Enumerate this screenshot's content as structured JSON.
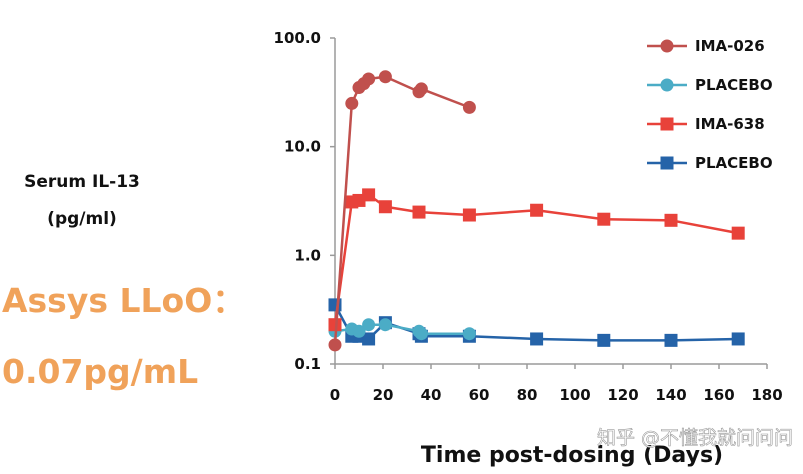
{
  "chart_data": {
    "type": "line",
    "ylabel_lines": [
      "Serum IL-13",
      "(pg/ml)"
    ],
    "xlabel": "Time post-dosing (Days)",
    "yscale": "log",
    "ylim": [
      0.1,
      100
    ],
    "xlim": [
      0,
      180
    ],
    "yticks": [
      0.1,
      1,
      10,
      100
    ],
    "ytick_labels": [
      "0.1",
      "1.0",
      "10.0",
      "100.0"
    ],
    "xticks": [
      0,
      20,
      40,
      60,
      80,
      100,
      120,
      140,
      160,
      180
    ],
    "xtick_labels": [
      "0",
      "20",
      "40",
      "60",
      "80",
      "100",
      "120",
      "140",
      "160",
      "180"
    ],
    "series": [
      {
        "name": "IMA-026",
        "color": "#C0504D",
        "marker": "circle",
        "x": [
          0,
          7,
          10,
          12,
          14,
          21,
          35,
          36,
          56
        ],
        "y": [
          0.15,
          25,
          35,
          38,
          42,
          44,
          32,
          34,
          23
        ]
      },
      {
        "name": "PLACEBO",
        "color": "#4BACC6",
        "marker": "circle",
        "x": [
          0,
          7,
          10,
          14,
          21,
          35,
          36,
          56
        ],
        "y": [
          0.2,
          0.21,
          0.2,
          0.23,
          0.23,
          0.2,
          0.19,
          0.19
        ]
      },
      {
        "name": "IMA-638",
        "color": "#E8423A",
        "marker": "square",
        "x": [
          0,
          7,
          10,
          14,
          21,
          35,
          56,
          84,
          112,
          140,
          168
        ],
        "y": [
          0.23,
          3.1,
          3.2,
          3.6,
          2.8,
          2.5,
          2.35,
          2.6,
          2.15,
          2.1,
          1.6
        ]
      },
      {
        "name": "PLACEBO",
        "color": "#2563A8",
        "marker": "square",
        "x": [
          0,
          7,
          10,
          14,
          21,
          35,
          36,
          56,
          84,
          112,
          140,
          168
        ],
        "y": [
          0.35,
          0.18,
          0.18,
          0.17,
          0.24,
          0.19,
          0.18,
          0.18,
          0.17,
          0.165,
          0.165,
          0.17
        ]
      }
    ],
    "annotation_lines": [
      "Assys LLoO：",
      "0.07pg/mL"
    ],
    "legend_position": "top-right"
  },
  "watermark": "知乎 @不懂我就问问问"
}
